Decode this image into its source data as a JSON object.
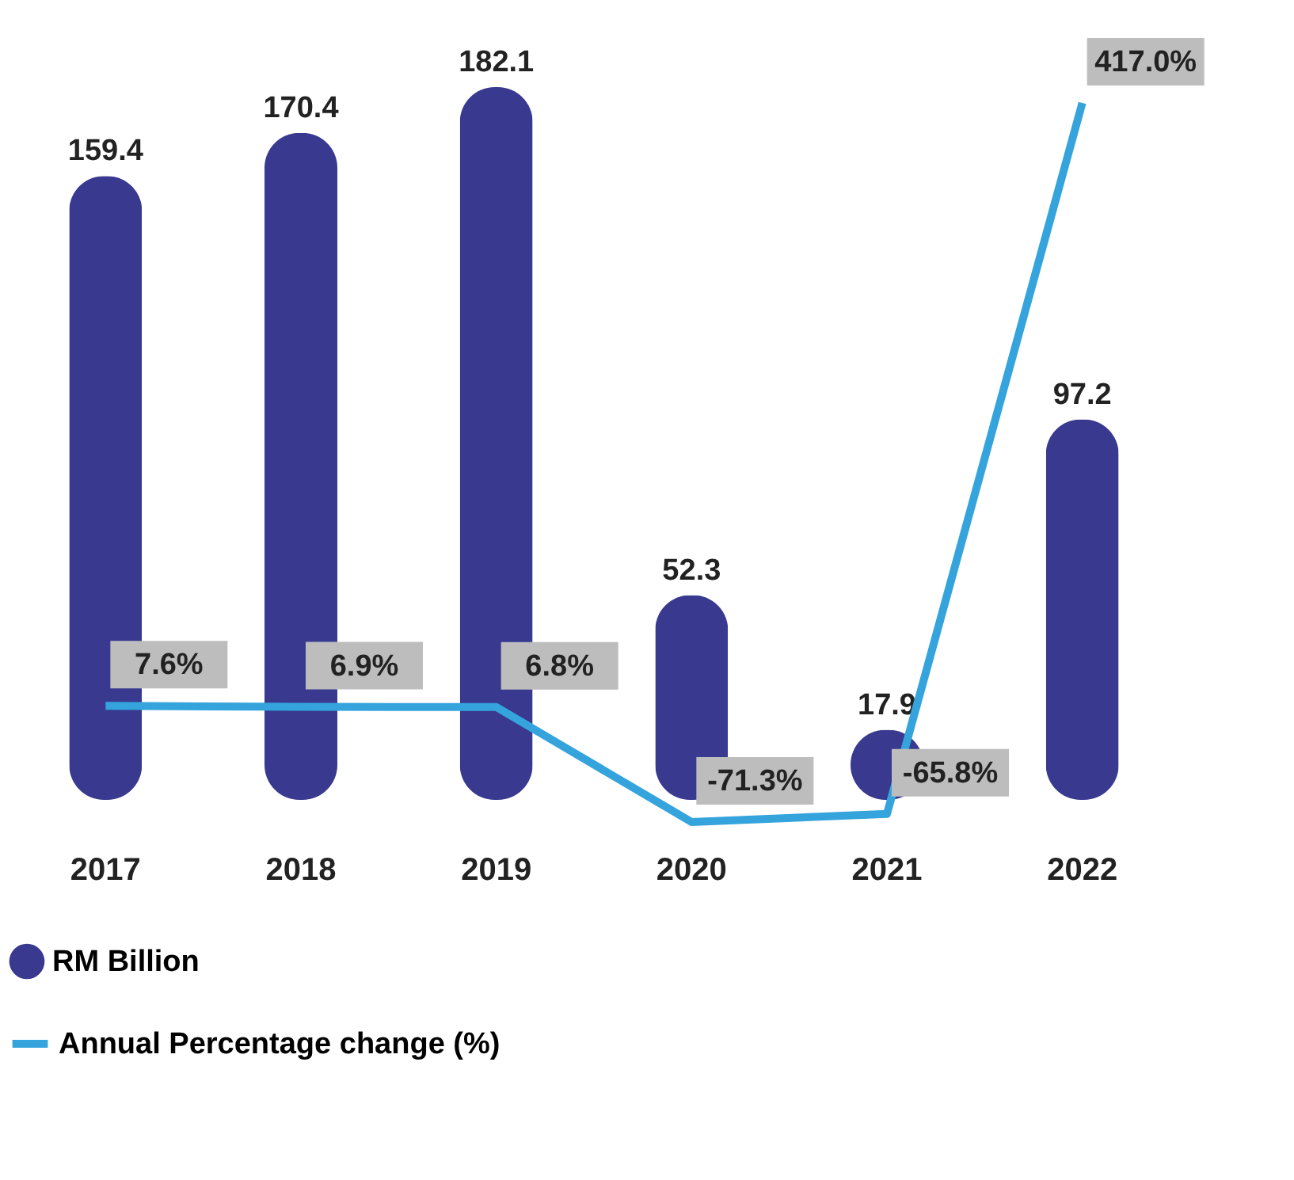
{
  "chart_data": {
    "type": "bar",
    "categories": [
      "2017",
      "2018",
      "2019",
      "2020",
      "2021",
      "2022"
    ],
    "series": [
      {
        "name": "RM Billion",
        "color": "#38398f",
        "values": [
          159.4,
          170.4,
          182.1,
          52.3,
          17.9,
          97.2
        ]
      },
      {
        "name": "Annual Percentage change (%)",
        "type": "line",
        "axis": "y2",
        "color": "#35a4dc",
        "values": [
          7.6,
          6.9,
          6.8,
          -71.3,
          -65.8,
          417.0
        ],
        "value_labels": [
          "7.6%",
          "6.9%",
          "6.8%",
          "-71.3%",
          "-65.8%",
          "417.0%"
        ]
      }
    ],
    "data_labels": true,
    "tick_labels": "x",
    "grid": false,
    "legend": "bottom left",
    "line_style": "solid"
  }
}
